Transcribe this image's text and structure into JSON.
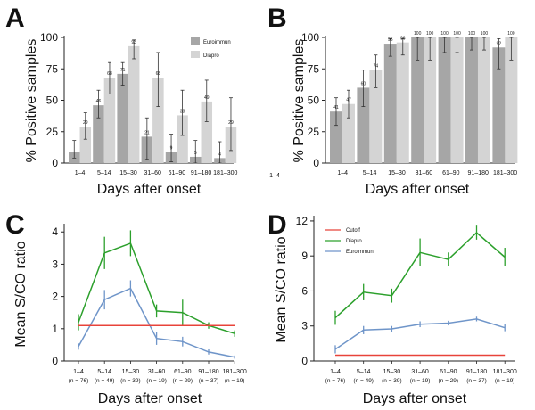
{
  "chart_data": [
    {
      "panel": "A",
      "type": "bar",
      "categories": [
        "1–4",
        "5–14",
        "15–30",
        "31–60",
        "61–90",
        "91–180",
        "181–300"
      ],
      "series": [
        {
          "name": "Euroimmun",
          "color": "#a6a6a6",
          "values": [
            9,
            46,
            71,
            21,
            9,
            5,
            4
          ],
          "labels": [
            "",
            "46",
            "71",
            "21",
            "9",
            "5",
            "4"
          ],
          "err_low": [
            4,
            36,
            62,
            3,
            1,
            0,
            0
          ],
          "err_high": [
            18,
            58,
            80,
            36,
            23,
            18,
            17
          ]
        },
        {
          "name": "Diapro",
          "color": "#d4d4d4",
          "values": [
            29,
            68,
            93,
            68,
            38,
            49,
            29
          ],
          "labels": [
            "29",
            "68",
            "93",
            "68",
            "38",
            "49",
            "29"
          ],
          "err_low": [
            19,
            55,
            83,
            45,
            22,
            33,
            10
          ],
          "err_high": [
            40,
            80,
            98,
            88,
            58,
            66,
            52
          ]
        }
      ],
      "xlabel": "Days after onset",
      "ylabel": "% Positive samples",
      "ylim": [
        0,
        100
      ],
      "yticks": [
        "0",
        "25",
        "50",
        "75",
        "100"
      ],
      "legend": "top-right"
    },
    {
      "panel": "B",
      "type": "bar",
      "categories": [
        "1–4",
        "5–14",
        "15–30",
        "31–60",
        "61–90",
        "91–180",
        "181–300"
      ],
      "series": [
        {
          "name": "Euroimmun",
          "color": "#a6a6a6",
          "values": [
            41,
            60,
            95,
            100,
            100,
            100,
            92
          ],
          "labels": [
            "41",
            "60",
            "95",
            "100",
            "100",
            "100",
            "92"
          ],
          "err_low": [
            30,
            45,
            85,
            82,
            88,
            90,
            75
          ],
          "err_high": [
            52,
            74,
            99,
            100,
            100,
            100,
            99
          ]
        },
        {
          "name": "Diapro",
          "color": "#d4d4d4",
          "values": [
            47,
            74,
            96,
            100,
            100,
            100,
            100
          ],
          "labels": [
            "47",
            "74",
            "96",
            "100",
            "100",
            "100",
            "100"
          ],
          "err_low": [
            36,
            60,
            86,
            82,
            88,
            90,
            82
          ],
          "err_high": [
            58,
            86,
            99,
            100,
            100,
            100,
            100
          ]
        }
      ],
      "xlabel": "Days after onset",
      "ylabel": "% Positive samples",
      "ylim": [
        0,
        100
      ],
      "yticks": [
        "0",
        "25",
        "50",
        "75",
        "100"
      ],
      "stray_label": "1–4"
    },
    {
      "panel": "C",
      "type": "line",
      "categories": [
        "1–4",
        "5–14",
        "15–30",
        "31–60",
        "61–90",
        "91–180",
        "181–300"
      ],
      "n_labels": [
        "(n = 76)",
        "(n = 49)",
        "(n = 39)",
        "(n = 19)",
        "(n = 29)",
        "(n = 37)",
        "(n = 19)"
      ],
      "series": [
        {
          "name": "Diapro",
          "color": "#2ca02c",
          "values": [
            1.2,
            3.35,
            3.65,
            1.55,
            1.5,
            1.1,
            0.85
          ],
          "err": [
            0.25,
            0.5,
            0.4,
            0.2,
            0.4,
            0.1,
            0.1
          ]
        },
        {
          "name": "Euroimmun",
          "color": "#6f95c9",
          "values": [
            0.45,
            1.9,
            2.25,
            0.7,
            0.6,
            0.28,
            0.12
          ],
          "err": [
            0.1,
            0.3,
            0.25,
            0.2,
            0.15,
            0.08,
            0.05
          ]
        },
        {
          "name": "Cutoff",
          "color": "#e8433a",
          "values": [
            1.1,
            1.1,
            1.1,
            1.1,
            1.1,
            1.1,
            1.1
          ]
        }
      ],
      "xlabel": "Days after onset",
      "ylabel": "Mean S/CO ratio",
      "ylim": [
        0,
        4.2
      ],
      "yticks": [
        "0",
        "1",
        "2",
        "3",
        "4"
      ]
    },
    {
      "panel": "D",
      "type": "line",
      "categories": [
        "1–4",
        "5–14",
        "15–30",
        "31–60",
        "61–90",
        "91–180",
        "181–300"
      ],
      "n_labels": [
        "(n = 76)",
        "(n = 49)",
        "(n = 39)",
        "(n = 19)",
        "(n = 29)",
        "(n = 37)",
        "(n = 19)"
      ],
      "series": [
        {
          "name": "Cutoff",
          "color": "#e8433a",
          "values": [
            0.5,
            0.5,
            0.5,
            0.5,
            0.5,
            0.5,
            0.5
          ]
        },
        {
          "name": "Diapro",
          "color": "#2ca02c",
          "values": [
            3.7,
            5.9,
            5.6,
            9.3,
            8.7,
            11.0,
            8.9
          ],
          "err": [
            0.6,
            0.7,
            0.6,
            1.2,
            0.6,
            0.6,
            0.8
          ]
        },
        {
          "name": "Euroimmun",
          "color": "#6f95c9",
          "values": [
            1.0,
            2.65,
            2.75,
            3.15,
            3.25,
            3.6,
            2.85
          ],
          "err": [
            0.35,
            0.35,
            0.25,
            0.25,
            0.2,
            0.2,
            0.3
          ]
        }
      ],
      "xlabel": "Days after onset",
      "ylabel": "Mean S/CO ratio",
      "ylim": [
        0,
        12.3
      ],
      "yticks": [
        "0",
        "3",
        "6",
        "9",
        "12"
      ],
      "legend": "top-left"
    }
  ]
}
